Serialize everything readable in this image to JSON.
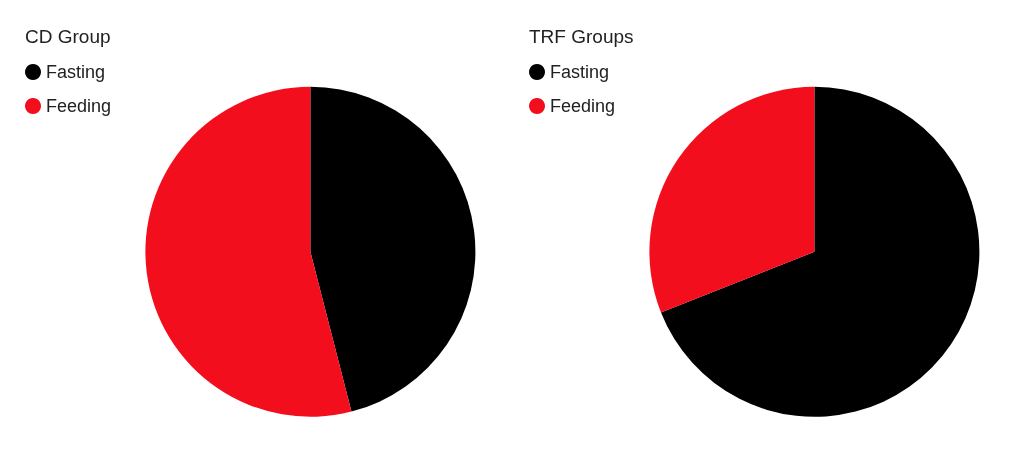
{
  "chart_data": [
    {
      "type": "pie",
      "title": "CD Group",
      "categories": [
        "Fasting",
        "Feeding"
      ],
      "values": [
        46,
        54
      ],
      "colors": [
        "#000000",
        "#f30e1e"
      ],
      "legend": "top left"
    },
    {
      "type": "pie",
      "title": "TRF Groups",
      "categories": [
        "Fasting",
        "Feeding"
      ],
      "values": [
        69,
        31
      ],
      "colors": [
        "#000000",
        "#f30e1e"
      ],
      "legend": "top left"
    }
  ]
}
